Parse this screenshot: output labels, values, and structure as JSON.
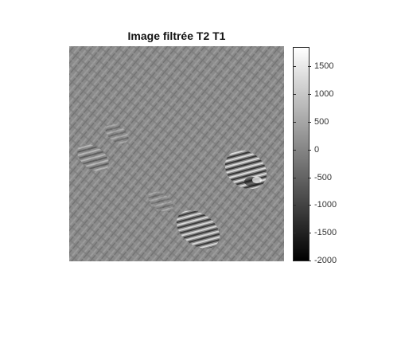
{
  "figure": {
    "title": "Image filtrée T2 T1"
  },
  "colorbar": {
    "colormap": "gray",
    "min": -2000,
    "max": 1850,
    "tick_labels": [
      "1500",
      "1000",
      "500",
      "0",
      "-500",
      "-1000",
      "-1500",
      "-2000"
    ],
    "tick_values": [
      1500,
      1000,
      500,
      0,
      -500,
      -1000,
      -1500,
      -2000
    ]
  },
  "image": {
    "description_icon": "grayscale-texture-image"
  }
}
